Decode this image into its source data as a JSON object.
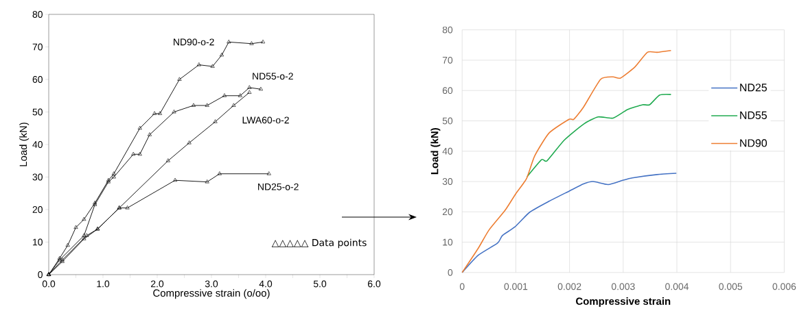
{
  "chart_data": [
    {
      "type": "line",
      "xlabel": "Compressive strain (o/oo)",
      "ylabel": "Load (kN)",
      "marker": "triangle",
      "xlim": [
        0,
        6
      ],
      "ylim": [
        0,
        80
      ],
      "xticks": [
        {
          "value": 0,
          "label": "0.0"
        },
        {
          "value": 0.5,
          "label": null
        },
        {
          "value": 1,
          "label": "1.0"
        },
        {
          "value": 1.5,
          "label": null
        },
        {
          "value": 2,
          "label": "2.0"
        },
        {
          "value": 2.5,
          "label": null
        },
        {
          "value": 3,
          "label": "3.0"
        },
        {
          "value": 3.5,
          "label": null
        },
        {
          "value": 4,
          "label": "4.0"
        },
        {
          "value": 4.5,
          "label": null
        },
        {
          "value": 5,
          "label": "5.0"
        },
        {
          "value": 5.5,
          "label": null
        },
        {
          "value": 6,
          "label": "6.0"
        }
      ],
      "yticks": [
        0,
        10,
        20,
        30,
        40,
        50,
        60,
        70,
        80
      ],
      "annotations": [
        "△△△△△ Data points"
      ],
      "series": [
        {
          "name": "ND90-o-2",
          "color": "#000000",
          "x": [
            0,
            0.2,
            0.35,
            0.5,
            0.65,
            0.85,
            1.1,
            1.2,
            1.68,
            1.95,
            2.05,
            2.41,
            2.77,
            3.02,
            3.19,
            3.32,
            3.74,
            3.95
          ],
          "values": [
            0,
            5,
            9,
            14.5,
            17,
            22,
            29,
            31,
            45,
            49.5,
            49.5,
            60,
            64.5,
            64,
            67.5,
            71.5,
            71,
            71.5
          ]
        },
        {
          "name": "ND55-o-2",
          "color": "#000000",
          "x": [
            0,
            0.2,
            0.65,
            0.85,
            1.1,
            1.2,
            1.56,
            1.68,
            1.86,
            2.31,
            2.67,
            2.92,
            3.24,
            3.53,
            3.7,
            3.91
          ],
          "values": [
            0,
            4.5,
            12,
            21.5,
            28.5,
            30,
            37,
            37,
            43,
            50,
            52,
            52,
            55,
            55,
            57.5,
            57
          ]
        },
        {
          "name": "LWA60-o-2",
          "color": "#000000",
          "x": [
            0,
            0.25,
            0.65,
            0.9,
            1.3,
            2.2,
            2.59,
            3.07,
            3.41,
            3.7
          ],
          "values": [
            0,
            4,
            11,
            14,
            20.5,
            35,
            40.5,
            47,
            52,
            56
          ]
        },
        {
          "name": "ND25-o-2",
          "color": "#000000",
          "x": [
            0,
            0.25,
            0.7,
            0.9,
            1.3,
            1.45,
            2.33,
            2.92,
            3.15,
            4.06
          ],
          "values": [
            0,
            4.5,
            12,
            14,
            20.5,
            20.5,
            29,
            28.5,
            31,
            31
          ]
        }
      ]
    },
    {
      "type": "line",
      "xlabel": "Compressive strain",
      "ylabel": "Load (kN)",
      "grid": true,
      "legend": "right",
      "xlim": [
        0,
        0.006
      ],
      "ylim": [
        0,
        80
      ],
      "xticks": [
        0,
        0.001,
        0.002,
        0.003,
        0.004,
        0.005,
        0.006
      ],
      "yticks": [
        0,
        10,
        20,
        30,
        40,
        50,
        60,
        70,
        80
      ],
      "series": [
        {
          "name": "ND25",
          "color": "#4472c4",
          "x": [
            0,
            0.0003,
            0.00066,
            0.00075,
            0.00098,
            0.00126,
            0.00162,
            0.00199,
            0.00226,
            0.00244,
            0.00272,
            0.00299,
            0.00317,
            0.00363,
            0.00399
          ],
          "values": [
            0,
            5.7,
            9.7,
            12.2,
            15,
            19.9,
            23.5,
            26.8,
            29.2,
            30,
            29,
            30.4,
            31.2,
            32.3,
            32.7
          ]
        },
        {
          "name": "ND55",
          "color": "#1faa4f",
          "x": [
            0.00121,
            0.00148,
            0.00158,
            0.0019,
            0.00226,
            0.00253,
            0.00281,
            0.00308,
            0.00336,
            0.00349,
            0.00368,
            0.00389
          ],
          "values": [
            31.6,
            37.2,
            36.8,
            43.6,
            48.9,
            51.3,
            50.9,
            53.7,
            55.3,
            55.3,
            58.5,
            58.7
          ]
        },
        {
          "name": "ND90",
          "color": "#ed7d31",
          "x": [
            0,
            0.0003,
            0.0005,
            0.0008,
            0.001,
            0.0012,
            0.00135,
            0.00162,
            0.00199,
            0.00208,
            0.00226,
            0.00258,
            0.00281,
            0.00295,
            0.00322,
            0.00345,
            0.00363,
            0.00389
          ],
          "values": [
            0,
            8,
            14,
            20.5,
            26,
            31,
            38.4,
            46,
            50.5,
            50.5,
            54.5,
            63.7,
            64.5,
            64.1,
            67.8,
            72.6,
            72.6,
            73.2
          ]
        }
      ]
    }
  ]
}
